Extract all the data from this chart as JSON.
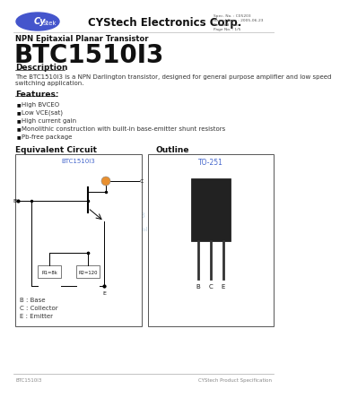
{
  "bg_color": "#ffffff",
  "header_line_color": "#cccccc",
  "logo_ellipse_color": "#4455cc",
  "logo_text_cy": "Cy",
  "logo_text_stek": "Stek",
  "company_name": "CYStech Electronics Corp.",
  "spec_no": "Spec. No. : C05203",
  "issued_date": "Issued Date : 2005-06-23",
  "revised_date": "Revised Date:",
  "page_no": "Page No. : 1/5",
  "subtitle": "NPN Epitaxial Planar Transistor",
  "part_number": "BTC1510I3",
  "section_description": "Description",
  "desc_text": "The BTC1510I3 is a NPN Darlington transistor, designed for general purpose amplifier and low speed\nswitching application.",
  "section_features": "Features:",
  "features": [
    "High BVCEO",
    "Low VCE(sat)",
    "High current gain",
    "Monolithic construction with built-in base-emitter shunt resistors",
    "Pb-free package"
  ],
  "section_equiv": "Equivalent Circuit",
  "section_outline": "Outline",
  "circuit_label": "BTC1510I3",
  "outline_label": "TO-251",
  "b_label": "B : Base",
  "c_label": "C : Collector",
  "e_label": "E : Emitter",
  "r1_label": "R1=8k",
  "r2_label": "R2=120",
  "footer_left": "BTC1510I3",
  "footer_right": "CYStech Product Specification",
  "footer_line_color": "#aaaaaa",
  "watermark_color": "#b8cfe0"
}
